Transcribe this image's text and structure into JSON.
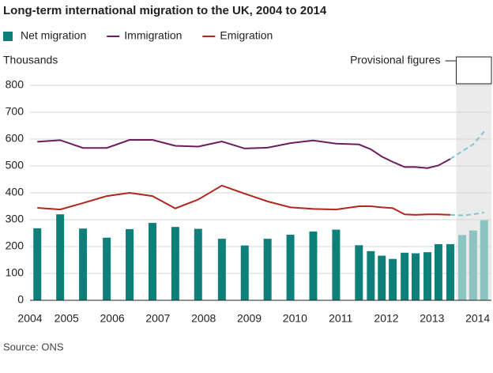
{
  "chart_data": {
    "type": "bar_line",
    "title": "Long-term international migration to the UK, 2004 to 2014",
    "y_axis_label": "Thousands",
    "annotation": "Provisional figures",
    "source": "Source: ONS",
    "x": [
      2004.36,
      2004.86,
      2005.36,
      2005.88,
      2006.38,
      2006.88,
      2007.38,
      2007.88,
      2008.4,
      2008.9,
      2009.4,
      2009.9,
      2010.4,
      2010.9,
      2011.4,
      2011.66,
      2011.9,
      2012.14,
      2012.4,
      2012.64,
      2012.9,
      2013.14,
      2013.4,
      2013.66,
      2013.9,
      2014.14
    ],
    "series": [
      {
        "name": "Net migration",
        "kind": "bar",
        "color": "#0f7f7a",
        "provisional_color": "#8cc4c2",
        "values": [
          268,
          320,
          267,
          233,
          265,
          288,
          273,
          266,
          229,
          204,
          229,
          244,
          256,
          263,
          205,
          183,
          166,
          154,
          177,
          175,
          179,
          209,
          209,
          243,
          260,
          298
        ]
      },
      {
        "name": "Immigration",
        "kind": "line",
        "color": "#6b1e5e",
        "provisional_color": "#7fc8cc",
        "values": [
          590,
          596,
          567,
          567,
          597,
          597,
          575,
          572,
          591,
          565,
          568,
          585,
          595,
          583,
          580,
          562,
          535,
          515,
          496,
          496,
          492,
          502,
          526,
          555,
          580,
          628
        ]
      },
      {
        "name": "Emigration",
        "kind": "line",
        "color": "#b3261e",
        "provisional_color": "#7fc8cc",
        "values": [
          344,
          338,
          362,
          388,
          400,
          388,
          342,
          375,
          427,
          397,
          368,
          346,
          340,
          338,
          350,
          350,
          346,
          343,
          320,
          318,
          320,
          320,
          318,
          316,
          320,
          327
        ]
      }
    ],
    "provisional_xlim": [
      2013.53,
      2014.3
    ],
    "provisional_fill": "#ebebeb",
    "xlim": [
      2004.2,
      2014.3
    ],
    "xticks": [
      2004,
      2005,
      2006,
      2007,
      2008,
      2009,
      2010,
      2011,
      2012,
      2013,
      2014
    ],
    "ylim": [
      0,
      800
    ],
    "yticks": [
      0,
      100,
      200,
      300,
      400,
      500,
      600,
      700,
      800
    ],
    "grid": true
  }
}
